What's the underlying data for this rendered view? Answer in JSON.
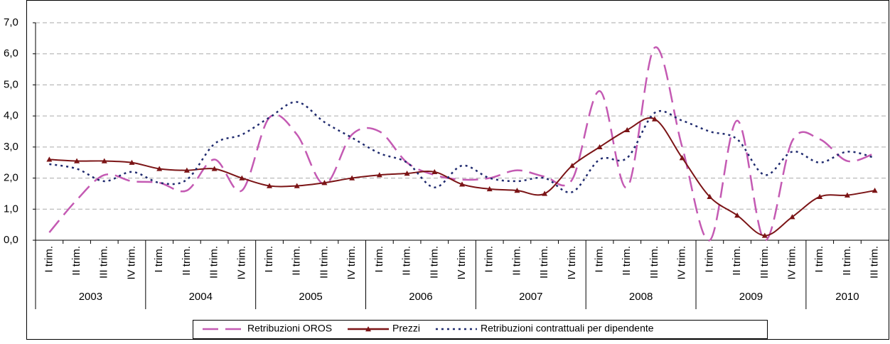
{
  "chart_data": {
    "type": "line",
    "category_groups": [
      {
        "name": "2003",
        "categories": [
          "I trim.",
          "II trim.",
          "III trim.",
          "IV trim."
        ]
      },
      {
        "name": "2004",
        "categories": [
          "I trim.",
          "II trim.",
          "III trim.",
          "IV trim."
        ]
      },
      {
        "name": "2005",
        "categories": [
          "I trim.",
          "II trim.",
          "III trim.",
          "IV trim."
        ]
      },
      {
        "name": "2006",
        "categories": [
          "I trim.",
          "II trim.",
          "III trim.",
          "IV trim."
        ]
      },
      {
        "name": "2007",
        "categories": [
          "I trim.",
          "II trim.",
          "III trim.",
          "IV trim."
        ]
      },
      {
        "name": "2008",
        "categories": [
          "I trim.",
          "II trim.",
          "III trim.",
          "IV trim."
        ]
      },
      {
        "name": "2009",
        "categories": [
          "I trim.",
          "II trim.",
          "III trim.",
          "IV trim."
        ]
      },
      {
        "name": "2010",
        "categories": [
          "I trim.",
          "II trim.",
          "III trim."
        ]
      }
    ],
    "series": [
      {
        "name": "Retribuzioni OROS",
        "color": "#c45ab3",
        "line_style": "dashed",
        "values": [
          0.25,
          1.3,
          2.1,
          1.9,
          1.85,
          1.6,
          2.6,
          1.6,
          3.95,
          3.4,
          1.8,
          3.4,
          3.5,
          2.5,
          2.1,
          1.95,
          2.0,
          2.25,
          2.05,
          1.95,
          4.8,
          1.7,
          6.2,
          3.0,
          0.0,
          3.85,
          0.0,
          3.2,
          3.25,
          2.55,
          2.8
        ]
      },
      {
        "name": "Prezzi",
        "color": "#7b1416",
        "line_style": "solid",
        "marker": "triangle",
        "values": [
          2.6,
          2.55,
          2.55,
          2.5,
          2.3,
          2.25,
          2.3,
          2.0,
          1.75,
          1.75,
          1.85,
          2.0,
          2.1,
          2.15,
          2.2,
          1.8,
          1.65,
          1.6,
          1.5,
          2.4,
          3.0,
          3.55,
          3.9,
          2.65,
          1.4,
          0.8,
          0.15,
          0.75,
          1.4,
          1.45,
          1.6
        ]
      },
      {
        "name": "Retribuzioni contrattuali per dipendente",
        "color": "#1f2a6e",
        "line_style": "dotted",
        "values": [
          2.45,
          2.3,
          1.9,
          2.2,
          1.85,
          1.95,
          3.1,
          3.4,
          3.95,
          4.45,
          3.8,
          3.3,
          2.8,
          2.5,
          1.7,
          2.4,
          2.0,
          1.9,
          2.0,
          1.55,
          2.6,
          2.65,
          4.1,
          3.85,
          3.5,
          3.25,
          2.1,
          2.85,
          2.5,
          2.85,
          2.65
        ]
      }
    ],
    "ylim": [
      0,
      7
    ],
    "yticks": [
      {
        "value": 0,
        "label": "0,0"
      },
      {
        "value": 1,
        "label": "1,0"
      },
      {
        "value": 2,
        "label": "2,0"
      },
      {
        "value": 3,
        "label": "3,0"
      },
      {
        "value": 4,
        "label": "4,0"
      },
      {
        "value": 5,
        "label": "5,0"
      },
      {
        "value": 6,
        "label": "6,0"
      },
      {
        "value": 7,
        "label": "7,0"
      }
    ],
    "grid": true,
    "legend": "bottom"
  }
}
